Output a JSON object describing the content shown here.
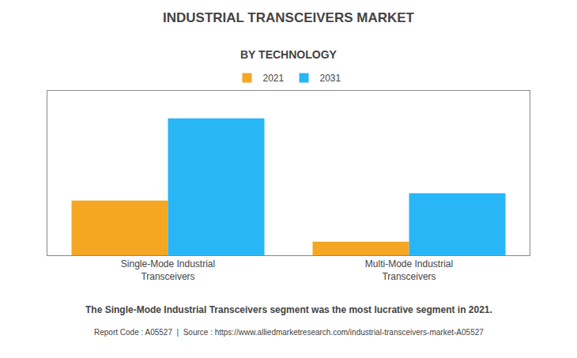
{
  "chart_data": {
    "type": "bar",
    "title": "INDUSTRIAL TRANSCEIVERS MARKET",
    "subtitle": "BY TECHNOLOGY",
    "categories": [
      "Single-Mode Industrial\nTransceivers",
      "Multi-Mode Industrial\nTransceivers"
    ],
    "series": [
      {
        "name": "2021",
        "color": "#F5A623",
        "values": [
          3.0,
          0.75
        ]
      },
      {
        "name": "2031",
        "color": "#29B6F6",
        "values": [
          7.5,
          3.4
        ]
      }
    ],
    "ylim": [
      0,
      9
    ],
    "yticks": [],
    "grid": false,
    "tick_labels": "x",
    "legend": "upper center",
    "annotations": [
      "The Single-Mode Industrial Transceivers segment was the most lucrative segment in 2021.",
      "Report Code : A05527  |  Source : https://www.alliedmarketresearch.com/industrial-transceivers-market-A05527"
    ]
  }
}
